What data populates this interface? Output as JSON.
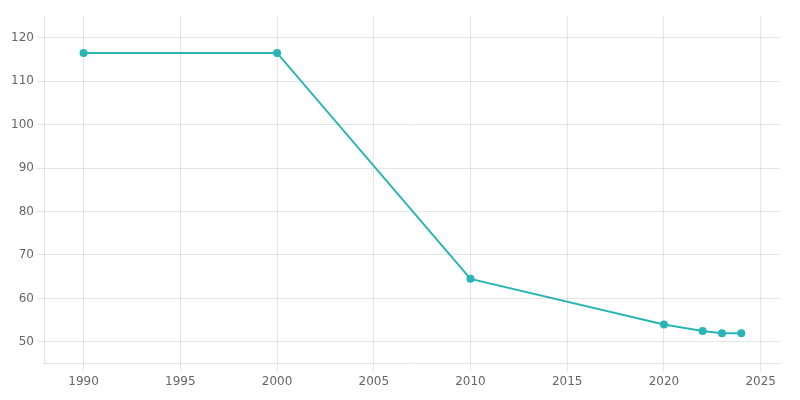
{
  "chart_data": {
    "type": "line",
    "x": [
      1990,
      2000,
      2010,
      2020,
      2022,
      2023,
      2024
    ],
    "values": [
      116.5,
      116.5,
      64.5,
      54.0,
      52.5,
      52.0,
      52.0
    ],
    "color": "#2ab5b5",
    "marker": "circle",
    "xlim": [
      1988,
      2026
    ],
    "ylim": [
      45,
      125
    ],
    "xticks": [
      1990,
      1995,
      2000,
      2005,
      2010,
      2015,
      2020,
      2025
    ],
    "yticks": [
      50,
      60,
      70,
      80,
      90,
      100,
      110,
      120
    ],
    "grid": true
  }
}
